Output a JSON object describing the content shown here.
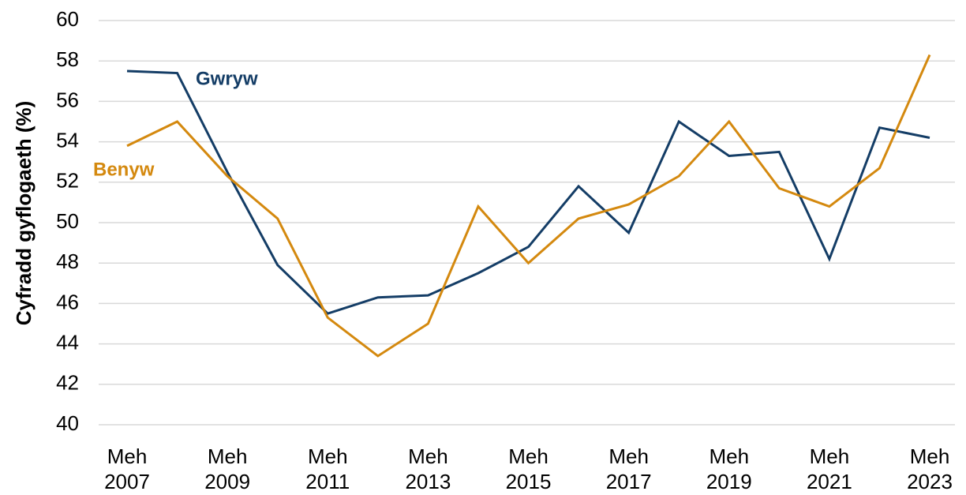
{
  "chart_data": {
    "type": "line",
    "y_label": "Cyfradd gyflogaeth (%)",
    "categories": [
      "Meh 2007",
      null,
      "Meh 2009",
      null,
      "Meh 2011",
      null,
      "Meh 2013",
      null,
      "Meh 2015",
      null,
      "Meh 2017",
      null,
      "Meh 2019",
      null,
      "Meh 2021",
      null,
      "Meh 2023"
    ],
    "series": [
      {
        "name": "Gwryw",
        "color": "#143d66",
        "values": [
          57.5,
          57.4,
          52.5,
          47.9,
          45.5,
          46.3,
          46.4,
          47.5,
          48.8,
          51.8,
          49.5,
          55.0,
          53.3,
          53.5,
          48.2,
          54.7,
          54.2
        ]
      },
      {
        "name": "Benyw",
        "color": "#d4890f",
        "values": [
          53.8,
          55.0,
          52.3,
          50.2,
          45.3,
          43.4,
          45.0,
          50.8,
          48.0,
          50.2,
          50.9,
          52.3,
          55.0,
          51.7,
          50.8,
          52.7,
          58.3
        ]
      }
    ],
    "ylim": [
      40,
      60
    ],
    "yticks": [
      40,
      42,
      44,
      46,
      48,
      50,
      52,
      54,
      56,
      58,
      60
    ],
    "grid": true
  }
}
